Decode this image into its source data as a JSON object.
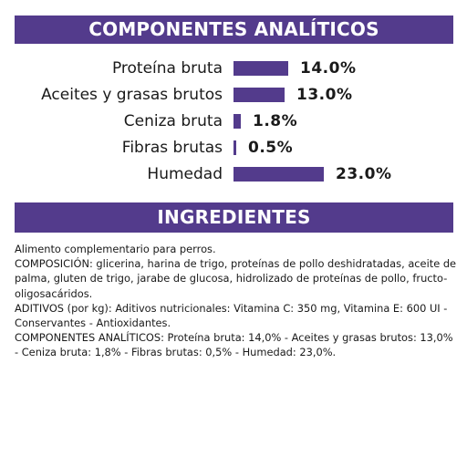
{
  "header": {
    "title": "COMPONENTES ANALÍTICOS"
  },
  "colors": {
    "brand_purple": "#533b8c",
    "text": "#1a1a1a",
    "background": "#ffffff"
  },
  "chart_data": {
    "type": "bar",
    "orientation": "horizontal",
    "title": "COMPONENTES ANALÍTICOS",
    "categories": [
      "Proteína bruta",
      "Aceites y grasas brutos",
      "Ceniza bruta",
      "Fibras brutas",
      "Humedad"
    ],
    "values": [
      14.0,
      13.0,
      1.8,
      0.5,
      23.0
    ],
    "value_labels": [
      "14.0%",
      "13.0%",
      "1.8%",
      "0.5%",
      "23.0%"
    ],
    "unit": "%",
    "xlim": [
      0,
      23.0
    ],
    "grid": false,
    "legend": "none"
  },
  "ingredients": {
    "title": "INGREDIENTES",
    "paragraphs": [
      "Alimento complementario para perros.",
      "COMPOSICIÓN: glicerina, harina de trigo, proteínas de pollo deshidratadas, aceite de palma, gluten de trigo, jarabe de glucosa, hidrolizado de proteínas de pollo, fructo-oligosacáridos.",
      "ADITIVOS (por kg): Aditivos nutricionales: Vitamina C: 350 mg, Vitamina E: 600 UI - Conservantes - Antioxidantes.",
      "COMPONENTES ANALÍTICOS: Proteína bruta: 14,0% - Aceites y grasas brutos: 13,0% - Ceniza bruta: 1,8% - Fibras brutas: 0,5% - Humedad: 23,0%."
    ]
  }
}
